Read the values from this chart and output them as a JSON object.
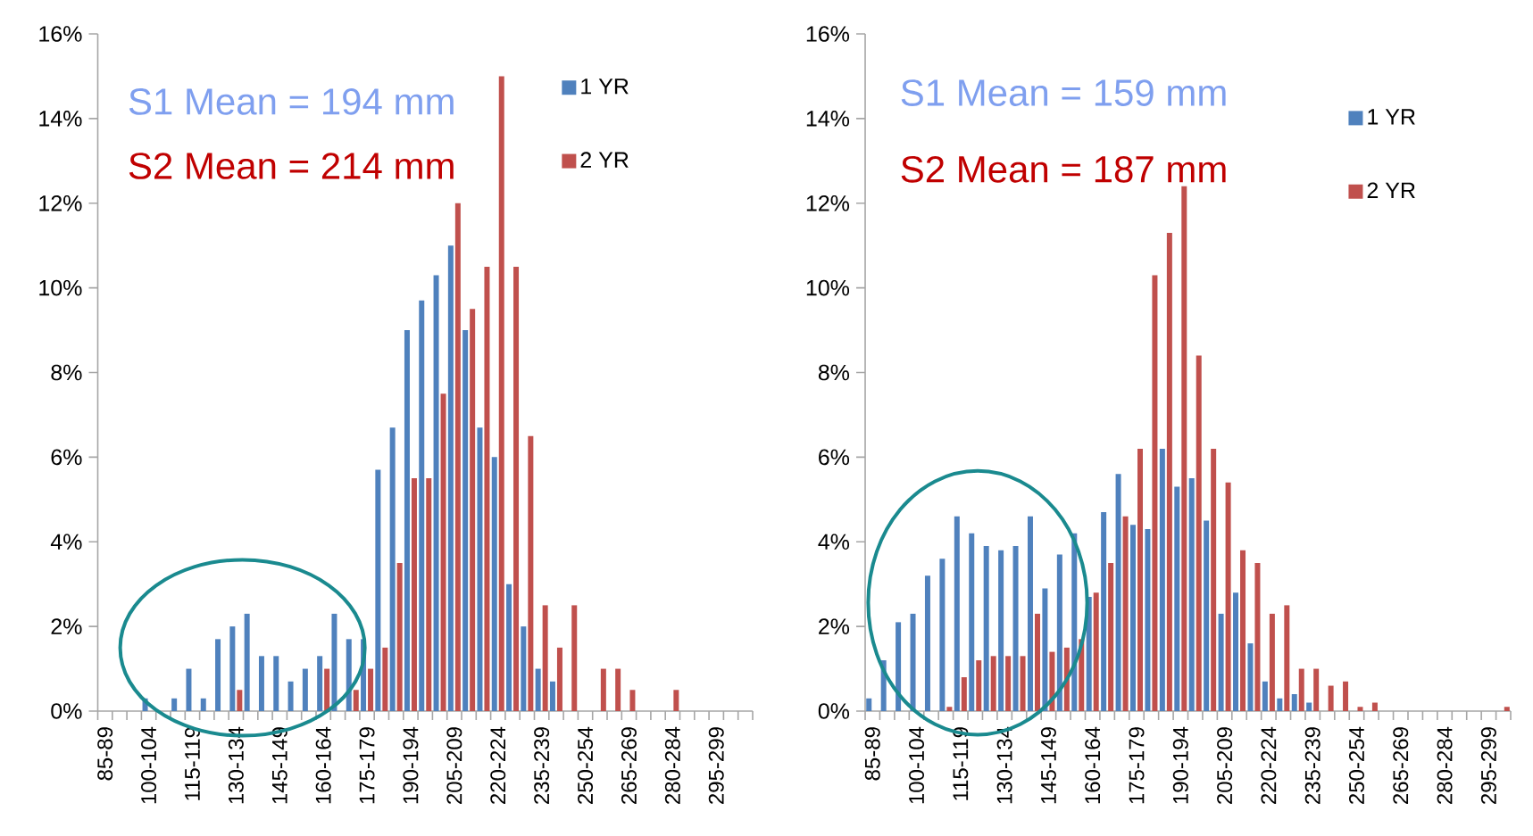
{
  "chart_data": [
    {
      "type": "bar",
      "categories": [
        "85-89",
        null,
        null,
        "100-104",
        null,
        null,
        "115-119",
        null,
        null,
        "130-134",
        null,
        null,
        "145-149",
        null,
        null,
        "160-164",
        null,
        null,
        "175-179",
        null,
        null,
        "190-194",
        null,
        null,
        "205-209",
        null,
        null,
        "220-224",
        null,
        null,
        "235-239",
        null,
        null,
        "250-254",
        null,
        null,
        "265-269",
        null,
        null,
        "280-284",
        null,
        null,
        "295-299",
        null,
        null
      ],
      "series": [
        {
          "name": "1 YR",
          "color": "#4f81bd",
          "values": [
            null,
            null,
            null,
            0.3,
            null,
            0.3,
            1.0,
            0.3,
            1.7,
            2.0,
            2.3,
            1.3,
            1.3,
            0.7,
            1.0,
            1.3,
            2.3,
            1.7,
            1.7,
            5.7,
            6.7,
            9.0,
            9.7,
            10.3,
            11.0,
            9.0,
            6.7,
            6.0,
            3.0,
            2.0,
            1.0,
            0.7,
            null,
            null,
            null,
            null,
            null,
            null,
            null,
            null,
            null,
            null,
            null,
            null,
            null
          ]
        },
        {
          "name": "2 YR",
          "color": "#c0504d",
          "values": [
            null,
            null,
            null,
            null,
            null,
            null,
            null,
            null,
            null,
            0.5,
            null,
            null,
            null,
            null,
            null,
            1.0,
            null,
            0.5,
            1.0,
            1.5,
            3.5,
            5.5,
            5.5,
            7.5,
            12.0,
            9.5,
            10.5,
            15.0,
            10.5,
            6.5,
            2.5,
            1.5,
            2.5,
            null,
            1.0,
            1.0,
            0.5,
            null,
            null,
            0.5,
            null,
            null,
            null,
            null,
            null
          ]
        }
      ],
      "ylim": [
        0,
        16
      ],
      "yticks": [
        {
          "value": 0,
          "label": "0%"
        },
        {
          "value": 2,
          "label": "2%"
        },
        {
          "value": 4,
          "label": "4%"
        },
        {
          "value": 6,
          "label": "6%"
        },
        {
          "value": 8,
          "label": "8%"
        },
        {
          "value": 10,
          "label": "10%"
        },
        {
          "value": 12,
          "label": "12%"
        },
        {
          "value": 14,
          "label": "14%"
        },
        {
          "value": 16,
          "label": "16%"
        }
      ],
      "legend": "top right",
      "annotations": [
        "S1 Mean = 194 mm",
        "S2 Mean = 214 mm"
      ]
    },
    {
      "type": "bar",
      "categories": [
        "85-89",
        null,
        null,
        "100-104",
        null,
        null,
        "115-119",
        null,
        null,
        "130-134",
        null,
        null,
        "145-149",
        null,
        null,
        "160-164",
        null,
        null,
        "175-179",
        null,
        null,
        "190-194",
        null,
        null,
        "205-209",
        null,
        null,
        "220-224",
        null,
        null,
        "235-239",
        null,
        null,
        "250-254",
        null,
        null,
        "265-269",
        null,
        null,
        "280-284",
        null,
        null,
        "295-299",
        null
      ],
      "series": [
        {
          "name": "1 YR",
          "color": "#4f81bd",
          "values": [
            0.3,
            1.2,
            2.1,
            2.3,
            3.2,
            3.6,
            4.6,
            4.2,
            3.9,
            3.8,
            3.9,
            4.6,
            2.9,
            3.7,
            4.2,
            2.7,
            4.7,
            5.6,
            4.4,
            4.3,
            6.2,
            5.3,
            5.5,
            4.5,
            2.3,
            2.8,
            1.6,
            0.7,
            0.3,
            0.4,
            0.2,
            null,
            null,
            null,
            null,
            null,
            null,
            null,
            null,
            null,
            null,
            null,
            null,
            null
          ]
        },
        {
          "name": "2 YR",
          "color": "#c0504d",
          "values": [
            null,
            null,
            null,
            null,
            null,
            0.1,
            0.8,
            1.2,
            1.3,
            1.3,
            1.3,
            2.3,
            1.4,
            1.5,
            1.7,
            2.8,
            3.5,
            4.6,
            6.2,
            10.3,
            11.3,
            12.4,
            8.4,
            6.2,
            5.4,
            3.8,
            3.5,
            2.3,
            2.5,
            1.0,
            1.0,
            0.6,
            0.7,
            0.1,
            0.2,
            null,
            null,
            null,
            null,
            null,
            null,
            null,
            null,
            0.1
          ]
        }
      ],
      "ylim": [
        0,
        16
      ],
      "yticks": [
        {
          "value": 0,
          "label": "0%"
        },
        {
          "value": 2,
          "label": "2%"
        },
        {
          "value": 4,
          "label": "4%"
        },
        {
          "value": 6,
          "label": "6%"
        },
        {
          "value": 8,
          "label": "8%"
        },
        {
          "value": 10,
          "label": "10%"
        },
        {
          "value": 12,
          "label": "12%"
        },
        {
          "value": 14,
          "label": "14%"
        },
        {
          "value": 16,
          "label": "16%"
        }
      ],
      "legend": "top right",
      "annotations": [
        "S1 Mean = 159 mm",
        "S2 Mean = 187 mm"
      ]
    }
  ]
}
